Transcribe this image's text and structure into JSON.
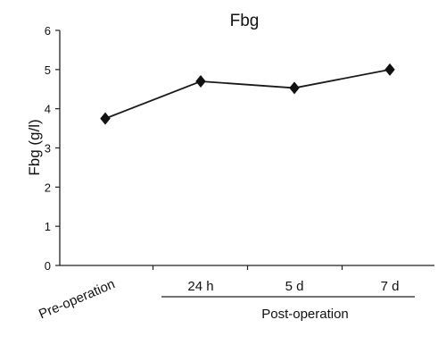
{
  "chart_data": {
    "type": "line",
    "title": "Fbg",
    "xlabel": "",
    "ylabel": "Fbg (g/l)",
    "categories": [
      "Pre-operation",
      "24 h",
      "5 d",
      "7 d"
    ],
    "values": [
      3.75,
      4.7,
      4.53,
      5.0
    ],
    "ylim": [
      0,
      6
    ],
    "yticks": [
      0,
      1,
      2,
      3,
      4,
      5,
      6
    ],
    "group_label": "Post-operation",
    "marker": "diamond",
    "grid": false,
    "legend": "none",
    "colors": {
      "line": "#1a1a1a",
      "marker": "#111111",
      "axis": "#222222",
      "text": "#111111"
    }
  }
}
